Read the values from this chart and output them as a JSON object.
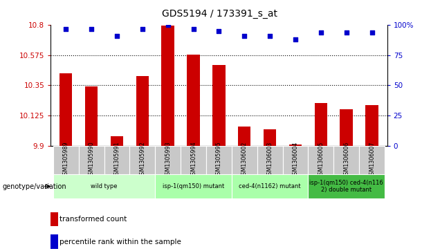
{
  "title": "GDS5194 / 173391_s_at",
  "samples": [
    "GSM1305989",
    "GSM1305990",
    "GSM1305991",
    "GSM1305992",
    "GSM1305993",
    "GSM1305994",
    "GSM1305995",
    "GSM1306002",
    "GSM1306003",
    "GSM1306004",
    "GSM1306005",
    "GSM1306006",
    "GSM1306007"
  ],
  "bar_values": [
    10.44,
    10.34,
    9.97,
    10.42,
    10.795,
    10.58,
    10.5,
    10.04,
    10.02,
    9.91,
    10.22,
    10.17,
    10.2
  ],
  "scatter_values": [
    97,
    97,
    91,
    97,
    100,
    97,
    95,
    91,
    91,
    88,
    94,
    94,
    94
  ],
  "bar_color": "#cc0000",
  "scatter_color": "#0000cc",
  "ylim_left": [
    9.9,
    10.8
  ],
  "ylim_right": [
    0,
    100
  ],
  "yticks_left": [
    9.9,
    10.125,
    10.35,
    10.575,
    10.8
  ],
  "ytick_labels_left": [
    "9.9",
    "10.125",
    "10.35",
    "10.575",
    "10.8"
  ],
  "yticks_right": [
    0,
    25,
    50,
    75,
    100
  ],
  "ytick_labels_right": [
    "0",
    "25",
    "50",
    "75",
    "100%"
  ],
  "groups": [
    {
      "label": "wild type",
      "start": 0,
      "end": 4,
      "color": "#ccffcc"
    },
    {
      "label": "isp-1(qm150) mutant",
      "start": 4,
      "end": 7,
      "color": "#aaffaa"
    },
    {
      "label": "ced-4(n1162) mutant",
      "start": 7,
      "end": 10,
      "color": "#aaffaa"
    },
    {
      "label": "isp-1(qm150) ced-4(n116\n2) double mutant",
      "start": 10,
      "end": 13,
      "color": "#44bb44"
    }
  ],
  "genotype_label": "genotype/variation",
  "legend_bar": "transformed count",
  "legend_scatter": "percentile rank within the sample",
  "hlines": [
    10.125,
    10.35,
    10.575
  ],
  "xtick_bg": "#c8c8c8",
  "bar_width": 0.5
}
